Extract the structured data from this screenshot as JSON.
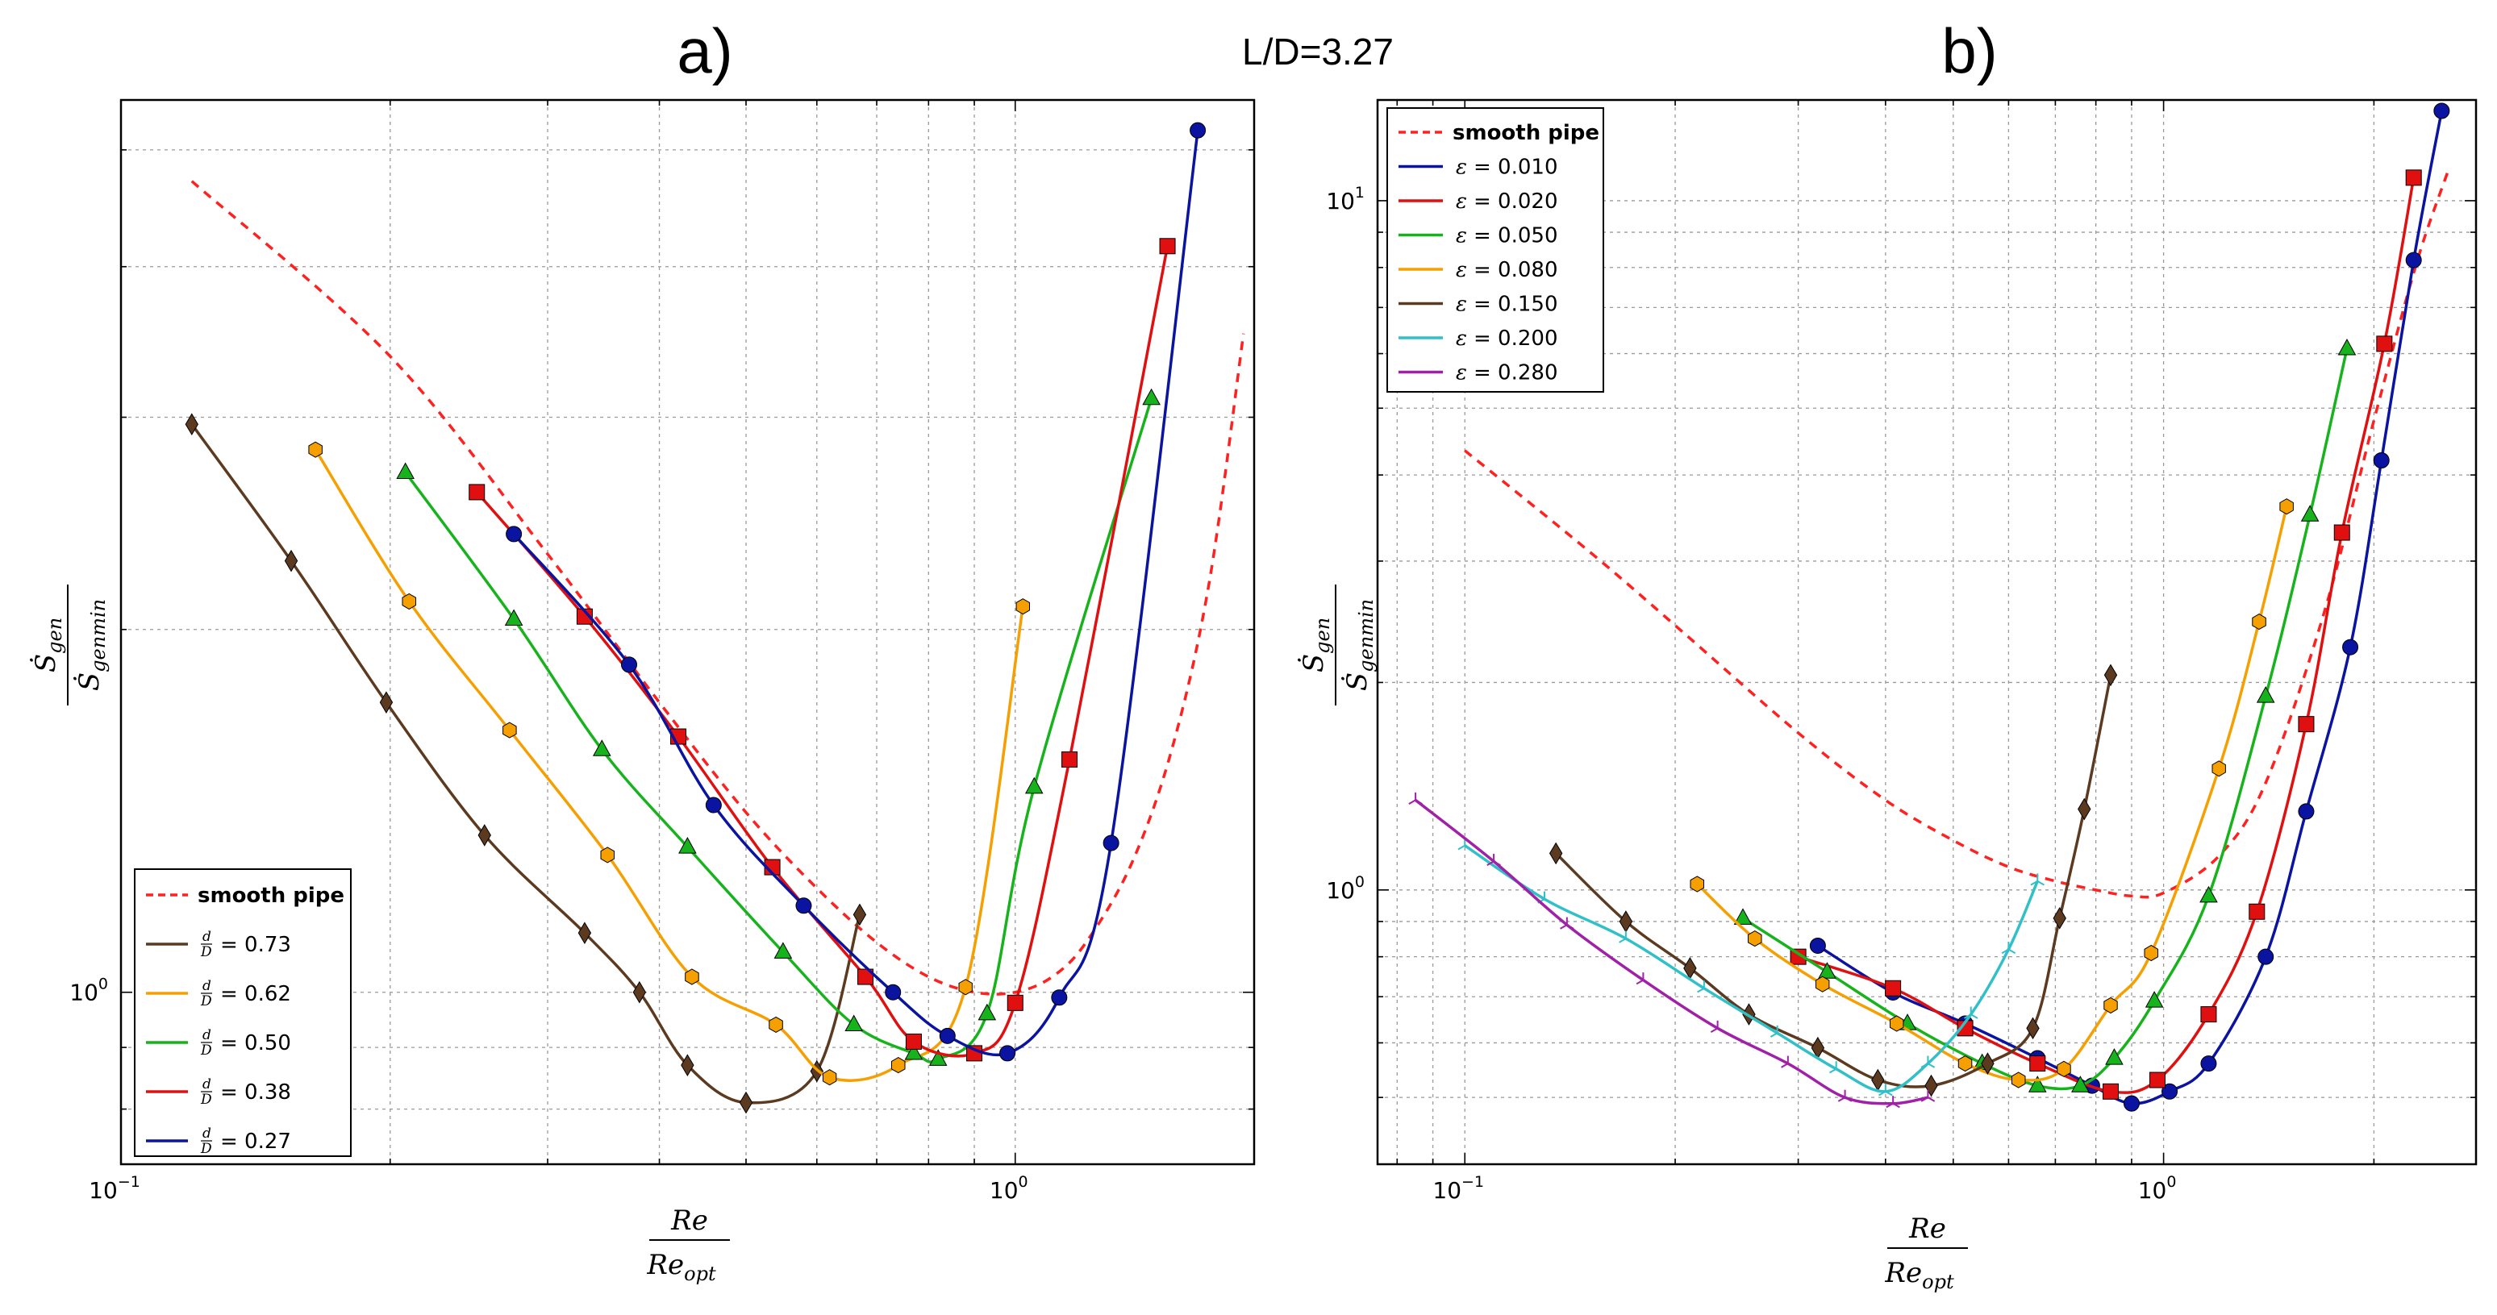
{
  "suptitle": "L/D=3.27",
  "xlabel": {
    "num": "Re",
    "den": "Re",
    "den_sub": "opt"
  },
  "ylabel": {
    "num": "Ṡ",
    "num_sub": "gen",
    "den": "Ṡ",
    "den_sub": "genmin"
  },
  "colors": {
    "smooth": "#ff2020",
    "brown": "#5c3a20",
    "orange": "#f5a000",
    "green": "#17b31c",
    "red": "#e01010",
    "blue": "#0a14a0",
    "cyan": "#30c0c8",
    "purple": "#a020a8"
  },
  "chart_data": [
    {
      "panel": "a)",
      "type": "line",
      "xscale": "log",
      "yscale": "log",
      "xlim": [
        0.1,
        1.85
      ],
      "ylim": [
        0.72,
        5.5
      ],
      "xtick_labels": [
        {
          "value": 0.1,
          "base": "10",
          "exp": "−1"
        },
        {
          "value": 1.0,
          "base": "10",
          "exp": "0"
        }
      ],
      "ytick_labels": [
        {
          "value": 1.0,
          "base": "10",
          "exp": "0"
        }
      ],
      "legend": "lower-left",
      "legend_title": "smooth pipe",
      "series": [
        {
          "name": "smooth pipe",
          "label_prefix": "",
          "label_value": "smooth pipe",
          "color": "smooth",
          "dashed": true,
          "marker": "none",
          "x": [
            0.12,
            0.2,
            0.3,
            0.4,
            0.5,
            0.6,
            0.7,
            0.8,
            0.9,
            1.0,
            1.1,
            1.2,
            1.35,
            1.5,
            1.65,
            1.8
          ],
          "y": [
            4.71,
            3.37,
            2.31,
            1.74,
            1.41,
            1.22,
            1.1,
            1.03,
            1.0,
            1.0,
            1.03,
            1.1,
            1.28,
            1.6,
            2.2,
            3.52
          ]
        },
        {
          "name": "d/D = 0.73",
          "label_prefix": "d/D",
          "label_value": "= 0.73",
          "color": "brown",
          "dashed": false,
          "marker": "diamond",
          "x": [
            0.12,
            0.155,
            0.198,
            0.255,
            0.33,
            0.38,
            0.43,
            0.5,
            0.6,
            0.67
          ],
          "y": [
            2.96,
            2.28,
            1.74,
            1.35,
            1.12,
            1.0,
            0.87,
            0.81,
            0.86,
            1.16
          ]
        },
        {
          "name": "d/D = 0.62",
          "label_prefix": "d/D",
          "label_value": "= 0.62",
          "color": "orange",
          "dashed": false,
          "marker": "hexagon",
          "x": [
            0.165,
            0.21,
            0.272,
            0.35,
            0.435,
            0.54,
            0.62,
            0.74,
            0.88,
            1.02
          ],
          "y": [
            2.82,
            2.11,
            1.65,
            1.3,
            1.03,
            0.94,
            0.85,
            0.87,
            1.01,
            2.09
          ]
        },
        {
          "name": "d/D = 0.50",
          "label_prefix": "d/D",
          "label_value": "= 0.50",
          "color": "green",
          "dashed": false,
          "marker": "triangle",
          "x": [
            0.208,
            0.275,
            0.345,
            0.43,
            0.55,
            0.66,
            0.77,
            0.82,
            0.93,
            1.05,
            1.42
          ],
          "y": [
            2.7,
            2.04,
            1.59,
            1.32,
            1.08,
            0.94,
            0.89,
            0.88,
            0.96,
            1.48,
            3.11
          ]
        },
        {
          "name": "d/D = 0.38",
          "label_prefix": "d/D",
          "label_value": "= 0.38",
          "color": "red",
          "dashed": false,
          "marker": "square",
          "x": [
            0.25,
            0.33,
            0.42,
            0.535,
            0.68,
            0.77,
            0.9,
            1.0,
            1.15,
            1.48
          ],
          "y": [
            2.6,
            2.05,
            1.63,
            1.27,
            1.03,
            0.91,
            0.89,
            0.98,
            1.56,
            4.16
          ]
        },
        {
          "name": "d/D = 0.27",
          "label_prefix": "d/D",
          "label_value": "= 0.27",
          "color": "blue",
          "dashed": false,
          "marker": "circle",
          "x": [
            0.275,
            0.37,
            0.46,
            0.58,
            0.73,
            0.84,
            0.98,
            1.12,
            1.28,
            1.6
          ],
          "y": [
            2.4,
            1.87,
            1.43,
            1.18,
            1.0,
            0.92,
            0.89,
            0.99,
            1.33,
            5.19
          ]
        }
      ]
    },
    {
      "panel": "b)",
      "type": "line",
      "xscale": "log",
      "yscale": "log",
      "xlim": [
        0.075,
        2.8
      ],
      "ylim": [
        0.4,
        14.0
      ],
      "xtick_labels": [
        {
          "value": 0.1,
          "base": "10",
          "exp": "−1"
        },
        {
          "value": 1.0,
          "base": "10",
          "exp": "0"
        }
      ],
      "ytick_labels": [
        {
          "value": 1.0,
          "base": "10",
          "exp": "0"
        },
        {
          "value": 10.0,
          "base": "10",
          "exp": "1"
        }
      ],
      "legend": "top-left",
      "series": [
        {
          "name": "smooth pipe",
          "label_prefix": "",
          "label_value": "smooth pipe",
          "color": "smooth",
          "dashed": true,
          "marker": "none",
          "x": [
            0.1,
            0.15,
            0.2,
            0.3,
            0.4,
            0.5,
            0.6,
            0.7,
            0.8,
            0.9,
            1.0,
            1.2,
            1.4,
            1.7,
            2.0,
            2.3,
            2.55
          ],
          "y": [
            4.34,
            3.11,
            2.42,
            1.69,
            1.35,
            1.18,
            1.08,
            1.03,
            1.0,
            0.98,
            0.99,
            1.12,
            1.43,
            2.54,
            4.8,
            8.1,
            11.0
          ]
        },
        {
          "name": "ε = 0.010",
          "label_prefix": "ε",
          "label_value": "= 0.010",
          "color": "blue",
          "dashed": false,
          "marker": "circle",
          "x": [
            0.32,
            0.41,
            0.52,
            0.66,
            0.79,
            0.9,
            1.02,
            1.16,
            1.4,
            1.6,
            1.85,
            2.05,
            2.28,
            2.5
          ],
          "y": [
            0.83,
            0.71,
            0.64,
            0.57,
            0.52,
            0.49,
            0.51,
            0.56,
            0.8,
            1.3,
            2.25,
            4.2,
            8.2,
            13.5
          ]
        },
        {
          "name": "ε = 0.020",
          "label_prefix": "ε",
          "label_value": "= 0.020",
          "color": "red",
          "dashed": false,
          "marker": "square",
          "x": [
            0.3,
            0.41,
            0.52,
            0.66,
            0.84,
            0.98,
            1.16,
            1.36,
            1.6,
            1.8,
            2.07,
            2.28
          ],
          "y": [
            0.8,
            0.72,
            0.63,
            0.56,
            0.51,
            0.53,
            0.66,
            0.93,
            1.74,
            3.3,
            6.2,
            10.8
          ]
        },
        {
          "name": "ε = 0.050",
          "label_prefix": "ε",
          "label_value": "= 0.050",
          "color": "green",
          "dashed": false,
          "marker": "triangle",
          "x": [
            0.25,
            0.33,
            0.43,
            0.55,
            0.66,
            0.76,
            0.85,
            0.97,
            1.16,
            1.4,
            1.62,
            1.83
          ],
          "y": [
            0.91,
            0.76,
            0.64,
            0.56,
            0.52,
            0.52,
            0.57,
            0.69,
            0.98,
            1.91,
            3.5,
            6.1
          ]
        },
        {
          "name": "ε = 0.080",
          "label_prefix": "ε",
          "label_value": "= 0.080",
          "color": "orange",
          "dashed": false,
          "marker": "hexagon",
          "x": [
            0.215,
            0.26,
            0.325,
            0.415,
            0.52,
            0.62,
            0.72,
            0.84,
            0.96,
            1.2,
            1.37,
            1.5
          ],
          "y": [
            1.02,
            0.85,
            0.73,
            0.64,
            0.56,
            0.53,
            0.55,
            0.68,
            0.81,
            1.5,
            2.45,
            3.6
          ]
        },
        {
          "name": "ε = 0.150",
          "label_prefix": "ε",
          "label_value": "= 0.150",
          "color": "brown",
          "dashed": false,
          "marker": "diamond",
          "x": [
            0.135,
            0.17,
            0.21,
            0.255,
            0.32,
            0.39,
            0.465,
            0.56,
            0.65,
            0.71,
            0.77,
            0.84
          ],
          "y": [
            1.13,
            0.9,
            0.77,
            0.66,
            0.59,
            0.53,
            0.52,
            0.56,
            0.63,
            0.91,
            1.31,
            2.05
          ]
        },
        {
          "name": "ε = 0.200",
          "label_prefix": "ε",
          "label_value": "= 0.200",
          "color": "cyan",
          "dashed": false,
          "marker": "tri",
          "x": [
            0.1,
            0.13,
            0.17,
            0.22,
            0.28,
            0.34,
            0.4,
            0.46,
            0.53,
            0.6,
            0.66
          ],
          "y": [
            1.16,
            0.97,
            0.85,
            0.72,
            0.62,
            0.55,
            0.51,
            0.56,
            0.66,
            0.82,
            1.03
          ]
        },
        {
          "name": "ε = 0.280",
          "label_prefix": "ε",
          "label_value": "= 0.280",
          "color": "purple",
          "dashed": false,
          "marker": "tri",
          "x": [
            0.085,
            0.11,
            0.14,
            0.18,
            0.23,
            0.29,
            0.35,
            0.41,
            0.46
          ],
          "y": [
            1.35,
            1.1,
            0.89,
            0.74,
            0.63,
            0.56,
            0.5,
            0.49,
            0.5
          ]
        }
      ]
    }
  ]
}
